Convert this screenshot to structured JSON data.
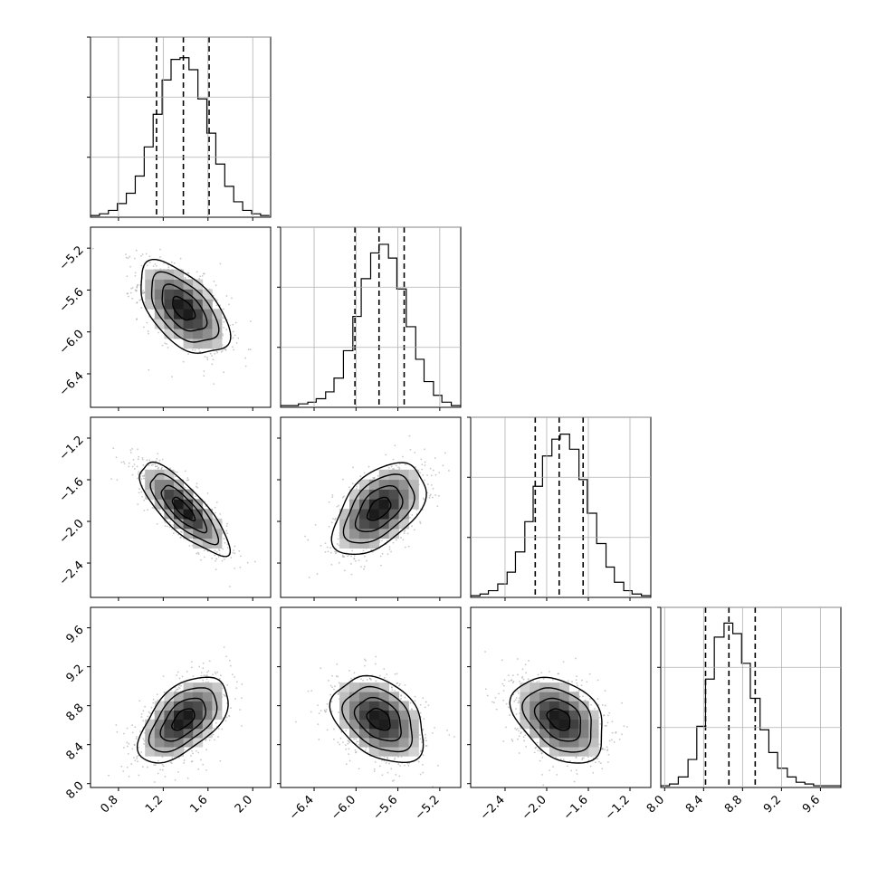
{
  "chart_data": {
    "type": "corner",
    "title": "",
    "n_params": 4,
    "grid": true,
    "parameters": [
      {
        "ticks": [
          0.8,
          1.2,
          1.6,
          2.0
        ],
        "tick_labels": [
          "0.8",
          "1.2",
          "1.6",
          "2.0"
        ],
        "range": [
          0.55,
          2.16
        ],
        "quantiles": [
          1.14,
          1.38,
          1.61
        ],
        "mean": 1.38,
        "sd": 0.2
      },
      {
        "ticks": [
          -6.4,
          -6.0,
          -5.6,
          -5.2
        ],
        "tick_labels": [
          "−6.4",
          "−6.0",
          "−5.6",
          "−5.2"
        ],
        "range": [
          -6.72,
          -5.0
        ],
        "quantiles": [
          -6.01,
          -5.78,
          -5.54
        ],
        "mean": -5.78,
        "sd": 0.22
      },
      {
        "ticks": [
          -2.4,
          -2.0,
          -1.6,
          -1.2
        ],
        "tick_labels": [
          "−2.4",
          "−2.0",
          "−1.6",
          "−1.2"
        ],
        "range": [
          -2.73,
          -1.0
        ],
        "quantiles": [
          -2.11,
          -1.88,
          -1.65
        ],
        "mean": -1.88,
        "sd": 0.22
      },
      {
        "ticks": [
          8.0,
          8.4,
          8.8,
          9.2,
          9.6
        ],
        "tick_labels": [
          "8.0",
          "8.4",
          "8.8",
          "9.2",
          "9.6"
        ],
        "range": [
          7.96,
          9.81
        ],
        "quantiles": [
          8.42,
          8.66,
          8.93
        ],
        "mean": 8.66,
        "sd": 0.22
      }
    ],
    "histograms": [
      {
        "param": 0,
        "bin_edges": [
          0.55,
          0.63,
          0.71,
          0.79,
          0.87,
          0.95,
          1.03,
          1.11,
          1.19,
          1.27,
          1.35,
          1.43,
          1.51,
          1.59,
          1.67,
          1.75,
          1.83,
          1.91,
          1.99,
          2.07,
          2.15
        ],
        "counts": [
          1,
          2,
          4,
          8,
          14,
          24,
          41,
          60,
          80,
          92,
          93,
          86,
          69,
          49,
          31,
          18,
          9,
          4,
          2,
          1
        ],
        "ymax": 105
      },
      {
        "param": 1,
        "bin_edges": [
          -6.72,
          -6.63,
          -6.55,
          -6.46,
          -6.38,
          -6.29,
          -6.21,
          -6.12,
          -6.03,
          -5.95,
          -5.86,
          -5.78,
          -5.69,
          -5.61,
          -5.52,
          -5.43,
          -5.35,
          -5.26,
          -5.18,
          -5.09,
          -5.0
        ],
        "counts": [
          1,
          1,
          2,
          3,
          5,
          9,
          17,
          33,
          53,
          75,
          90,
          95,
          87,
          69,
          47,
          28,
          15,
          7,
          3,
          1
        ],
        "ymax": 105
      },
      {
        "param": 2,
        "bin_edges": [
          -2.73,
          -2.64,
          -2.56,
          -2.47,
          -2.38,
          -2.3,
          -2.21,
          -2.13,
          -2.04,
          -1.95,
          -1.87,
          -1.78,
          -1.69,
          -1.61,
          -1.52,
          -1.43,
          -1.35,
          -1.26,
          -1.18,
          -1.09,
          -1.0
        ],
        "counts": [
          1,
          2,
          4,
          8,
          15,
          27,
          45,
          66,
          84,
          94,
          97,
          88,
          70,
          50,
          32,
          18,
          9,
          4,
          2,
          1
        ],
        "ymax": 107
      },
      {
        "param": 3,
        "bin_edges": [
          7.96,
          8.05,
          8.14,
          8.24,
          8.33,
          8.42,
          8.51,
          8.61,
          8.7,
          8.79,
          8.88,
          8.98,
          9.07,
          9.16,
          9.26,
          9.35,
          9.44,
          9.53,
          9.63,
          9.72,
          9.81
        ],
        "counts": [
          1,
          2,
          6,
          16,
          35,
          62,
          86,
          94,
          88,
          71,
          51,
          33,
          20,
          11,
          6,
          3,
          2,
          1,
          1,
          1
        ],
        "ymax": 103
      }
    ],
    "scatter_pairs": [
      {
        "x_param": 0,
        "y_param": 1,
        "correlation": -0.55
      },
      {
        "x_param": 0,
        "y_param": 2,
        "correlation": -0.8
      },
      {
        "x_param": 1,
        "y_param": 2,
        "correlation": 0.5
      },
      {
        "x_param": 0,
        "y_param": 3,
        "correlation": 0.55
      },
      {
        "x_param": 1,
        "y_param": 3,
        "correlation": -0.35
      },
      {
        "x_param": 2,
        "y_param": 3,
        "correlation": -0.35
      }
    ],
    "contour_levels_sigma": [
      0.5,
      1.0,
      1.5,
      2.0
    ]
  },
  "style": {
    "axis_color": "#000000",
    "grid_color": "#b0b0b0",
    "point_color": "#9a9a9a",
    "line_color": "#000000"
  }
}
